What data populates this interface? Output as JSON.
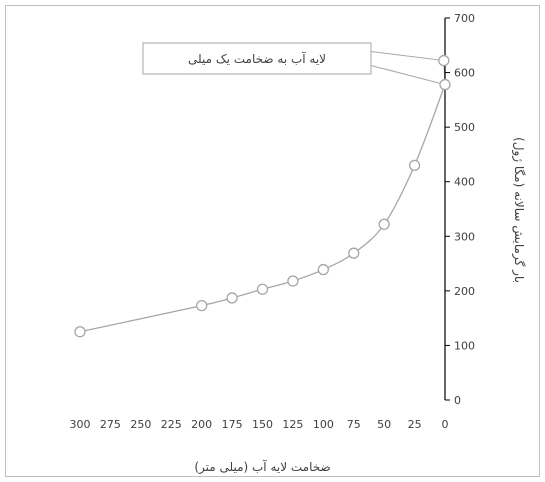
{
  "chart_data": {
    "type": "scatter",
    "title": "",
    "xlabel": "ضخامت لایه آب (میلی متر)",
    "ylabel": "بار گرمایش سالانه (مگا ژول)",
    "x_reversed": true,
    "xlim": [
      0,
      300
    ],
    "ylim": [
      0,
      700
    ],
    "x_ticks": [
      "0",
      "25",
      "50",
      "75",
      "100",
      "125",
      "150",
      "175",
      "200",
      "225",
      "250",
      "275",
      "300"
    ],
    "y_ticks": [
      "0",
      "100",
      "200",
      "300",
      "400",
      "500",
      "600",
      "700"
    ],
    "series": [
      {
        "x": [
          300,
          200,
          175,
          150,
          125,
          100,
          75,
          50,
          25,
          0,
          1
        ],
        "y": [
          125,
          173,
          187,
          203,
          218,
          239,
          269,
          322,
          430,
          578,
          622
        ],
        "marker": "circle-open",
        "line": "smooth",
        "color": "#a6a6a6"
      }
    ],
    "annotation": {
      "text": "لایه آب به ضخامت یک میلی",
      "targets_x": [
        1,
        0
      ],
      "targets_y": [
        622,
        578
      ]
    },
    "grid": false,
    "legend": "none"
  }
}
